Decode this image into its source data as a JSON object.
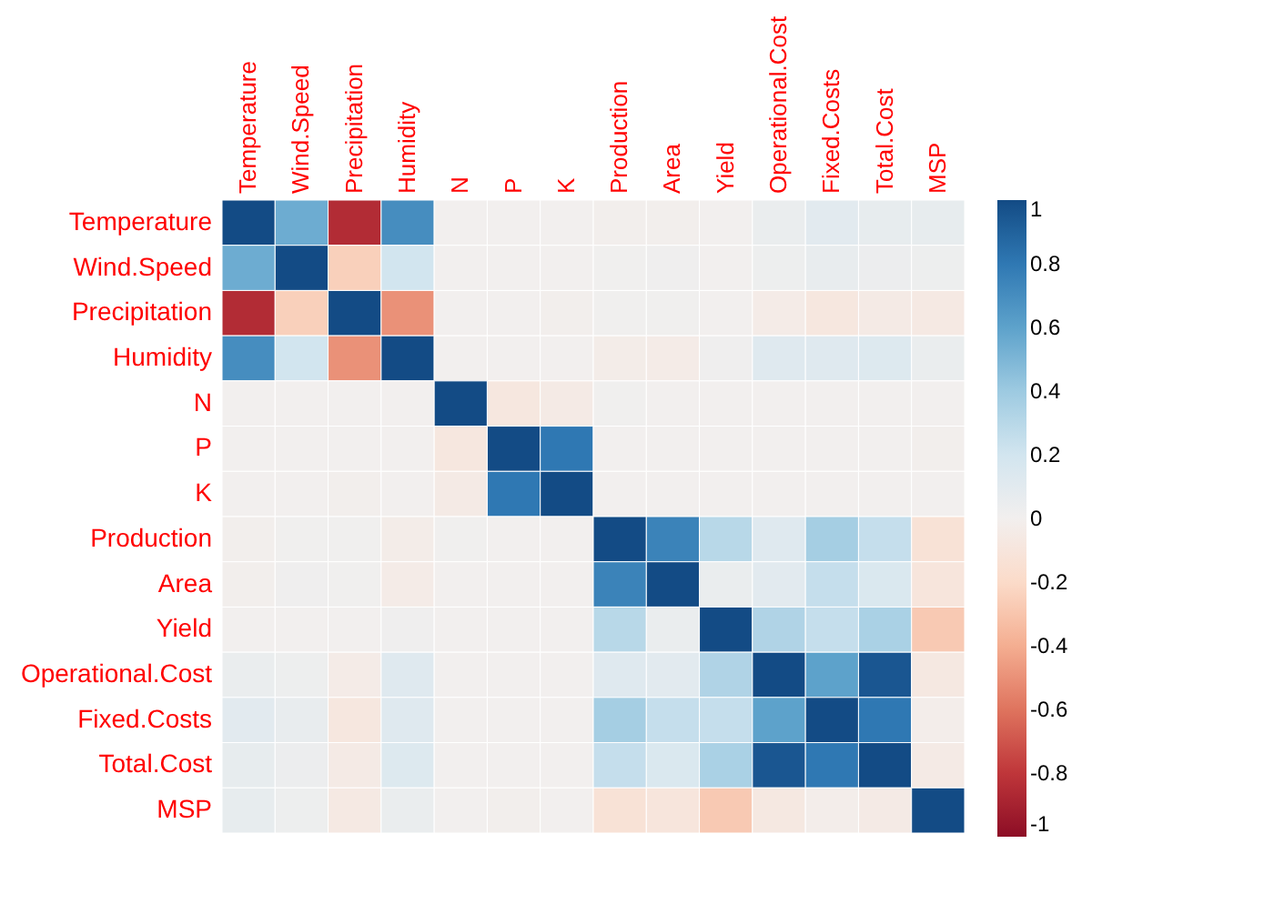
{
  "chart_data": {
    "type": "heatmap",
    "categories": [
      "Temperature",
      "Wind.Speed",
      "Precipitation",
      "Humidity",
      "N",
      "P",
      "K",
      "Production",
      "Area",
      "Yield",
      "Operational.Cost",
      "Fixed.Costs",
      "Total.Cost",
      "MSP"
    ],
    "y_categories": [
      "Temperature",
      "Wind.Speed",
      "Precipitation",
      "Humidity",
      "N",
      "P",
      "K",
      "Production",
      "Area",
      "Yield",
      "Operational.Cost",
      "Fixed.Costs",
      "Total.Cost",
      "MSP"
    ],
    "cells": [
      [
        1,
        0.55,
        -0.85,
        0.7,
        0,
        0,
        0,
        -0.01,
        -0.01,
        0,
        0.05,
        0.1,
        0.07,
        0.07
      ],
      [
        0.55,
        1,
        -0.25,
        0.2,
        0,
        0,
        0,
        0.01,
        0.02,
        0,
        0.03,
        0.06,
        0.04,
        0.03
      ],
      [
        -0.85,
        -0.25,
        1,
        -0.5,
        0,
        0,
        -0.01,
        0.01,
        0.01,
        0,
        -0.04,
        -0.08,
        -0.05,
        -0.06
      ],
      [
        0.7,
        0.2,
        -0.5,
        1,
        0,
        0,
        0,
        -0.03,
        -0.04,
        0.02,
        0.12,
        0.12,
        0.13,
        0.05
      ],
      [
        0,
        0,
        0,
        0,
        1,
        -0.08,
        -0.05,
        0.01,
        0,
        0,
        0,
        0,
        0,
        0
      ],
      [
        0,
        0,
        0,
        0,
        -0.08,
        1,
        0.8,
        0,
        0,
        0,
        0,
        0,
        0,
        -0.01
      ],
      [
        0,
        0,
        -0.01,
        0,
        -0.05,
        0.8,
        1,
        0,
        0,
        0,
        0,
        0,
        0,
        0
      ],
      [
        -0.01,
        0.01,
        0.01,
        -0.03,
        0.01,
        0,
        0,
        1,
        0.75,
        0.3,
        0.12,
        0.37,
        0.25,
        -0.13
      ],
      [
        -0.01,
        0.02,
        0.01,
        -0.04,
        0,
        0,
        0,
        0.75,
        1,
        0.05,
        0.1,
        0.25,
        0.15,
        -0.1
      ],
      [
        0,
        0,
        0,
        0.02,
        0,
        0,
        0,
        0.3,
        0.05,
        1,
        0.33,
        0.25,
        0.35,
        -0.28
      ],
      [
        0.05,
        0.03,
        -0.04,
        0.12,
        0,
        0,
        0,
        0.12,
        0.1,
        0.33,
        1,
        0.6,
        0.95,
        -0.07
      ],
      [
        0.1,
        0.06,
        -0.08,
        0.12,
        0,
        0,
        0,
        0.37,
        0.25,
        0.25,
        0.6,
        1,
        0.8,
        -0.02
      ],
      [
        0.07,
        0.04,
        -0.05,
        0.13,
        0,
        0,
        0,
        0.25,
        0.15,
        0.35,
        0.95,
        0.8,
        1,
        -0.05
      ],
      [
        0.07,
        0.03,
        -0.06,
        0.05,
        0,
        -0.01,
        0,
        -0.13,
        -0.1,
        -0.28,
        -0.07,
        -0.02,
        -0.05,
        1
      ]
    ],
    "clim": [
      -1,
      1
    ],
    "cticks": [
      -1,
      -0.8,
      -0.6,
      -0.4,
      -0.2,
      0,
      0.2,
      0.4,
      0.6,
      0.8,
      1
    ]
  }
}
